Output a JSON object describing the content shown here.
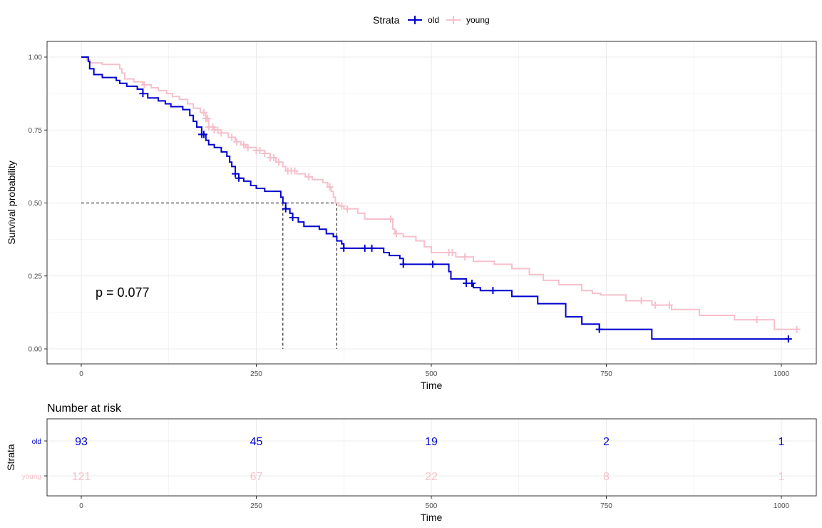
{
  "chart_data": [
    {
      "type": "line",
      "subtype": "kaplan-meier-step",
      "title": "",
      "xlabel": "Time",
      "ylabel": "Survival probability",
      "xlim": [
        -50,
        1050
      ],
      "ylim": [
        -0.05,
        1.05
      ],
      "x_ticks": [
        0,
        250,
        500,
        750,
        1000
      ],
      "y_ticks": [
        "0.00",
        "0.25",
        "0.50",
        "0.75",
        "1.00"
      ],
      "grid": true,
      "legend": {
        "title": "Strata",
        "position": "top",
        "entries": [
          "old",
          "young"
        ]
      },
      "annotations": {
        "p_value": "p = 0.077",
        "median_survival": {
          "old": 288,
          "young": 365,
          "line_y": 0.5
        }
      },
      "series": [
        {
          "name": "old",
          "color": "#0000CD",
          "steps": [
            [
              0,
              1.0
            ],
            [
              8,
              1.0
            ],
            [
              10,
              0.985
            ],
            [
              12,
              0.96
            ],
            [
              18,
              0.94
            ],
            [
              30,
              0.93
            ],
            [
              50,
              0.92
            ],
            [
              55,
              0.91
            ],
            [
              65,
              0.9
            ],
            [
              80,
              0.89
            ],
            [
              88,
              0.875
            ],
            [
              95,
              0.86
            ],
            [
              110,
              0.85
            ],
            [
              120,
              0.84
            ],
            [
              128,
              0.83
            ],
            [
              145,
              0.82
            ],
            [
              155,
              0.8
            ],
            [
              160,
              0.78
            ],
            [
              165,
              0.76
            ],
            [
              172,
              0.735
            ],
            [
              178,
              0.715
            ],
            [
              182,
              0.7
            ],
            [
              190,
              0.69
            ],
            [
              200,
              0.675
            ],
            [
              208,
              0.66
            ],
            [
              212,
              0.64
            ],
            [
              215,
              0.625
            ],
            [
              220,
              0.6
            ],
            [
              225,
              0.585
            ],
            [
              232,
              0.575
            ],
            [
              242,
              0.56
            ],
            [
              250,
              0.55
            ],
            [
              262,
              0.54
            ],
            [
              285,
              0.52
            ],
            [
              288,
              0.5
            ],
            [
              292,
              0.48
            ],
            [
              298,
              0.465
            ],
            [
              302,
              0.45
            ],
            [
              310,
              0.435
            ],
            [
              318,
              0.42
            ],
            [
              340,
              0.41
            ],
            [
              350,
              0.395
            ],
            [
              360,
              0.385
            ],
            [
              365,
              0.37
            ],
            [
              372,
              0.36
            ],
            [
              375,
              0.345
            ],
            [
              430,
              0.345
            ],
            [
              432,
              0.33
            ],
            [
              440,
              0.32
            ],
            [
              455,
              0.31
            ],
            [
              460,
              0.29
            ],
            [
              520,
              0.29
            ],
            [
              525,
              0.265
            ],
            [
              528,
              0.24
            ],
            [
              545,
              0.24
            ],
            [
              550,
              0.225
            ],
            [
              560,
              0.21
            ],
            [
              570,
              0.2
            ],
            [
              610,
              0.2
            ],
            [
              615,
              0.18
            ],
            [
              650,
              0.18
            ],
            [
              652,
              0.155
            ],
            [
              688,
              0.155
            ],
            [
              692,
              0.11
            ],
            [
              712,
              0.11
            ],
            [
              715,
              0.085
            ],
            [
              736,
              0.085
            ],
            [
              740,
              0.067
            ],
            [
              812,
              0.067
            ],
            [
              815,
              0.034
            ],
            [
              1010,
              0.034
            ]
          ],
          "censor_times": [
            88,
            172,
            175,
            220,
            225,
            292,
            302,
            375,
            405,
            415,
            460,
            502,
            550,
            558,
            588,
            740,
            1010
          ]
        },
        {
          "name": "young",
          "color": "#F5C0CB",
          "steps": [
            [
              0,
              1.0
            ],
            [
              8,
              0.99
            ],
            [
              12,
              0.98
            ],
            [
              30,
              0.975
            ],
            [
              55,
              0.96
            ],
            [
              58,
              0.945
            ],
            [
              62,
              0.925
            ],
            [
              75,
              0.915
            ],
            [
              88,
              0.905
            ],
            [
              100,
              0.895
            ],
            [
              110,
              0.885
            ],
            [
              122,
              0.875
            ],
            [
              130,
              0.865
            ],
            [
              140,
              0.855
            ],
            [
              152,
              0.84
            ],
            [
              160,
              0.825
            ],
            [
              170,
              0.81
            ],
            [
              178,
              0.79
            ],
            [
              182,
              0.76
            ],
            [
              190,
              0.75
            ],
            [
              200,
              0.74
            ],
            [
              210,
              0.725
            ],
            [
              220,
              0.71
            ],
            [
              228,
              0.7
            ],
            [
              235,
              0.69
            ],
            [
              250,
              0.68
            ],
            [
              262,
              0.67
            ],
            [
              270,
              0.655
            ],
            [
              278,
              0.64
            ],
            [
              288,
              0.625
            ],
            [
              292,
              0.61
            ],
            [
              308,
              0.6
            ],
            [
              320,
              0.59
            ],
            [
              330,
              0.58
            ],
            [
              345,
              0.57
            ],
            [
              352,
              0.555
            ],
            [
              357,
              0.54
            ],
            [
              360,
              0.52
            ],
            [
              363,
              0.5
            ],
            [
              368,
              0.49
            ],
            [
              375,
              0.48
            ],
            [
              395,
              0.465
            ],
            [
              405,
              0.445
            ],
            [
              440,
              0.445
            ],
            [
              445,
              0.41
            ],
            [
              448,
              0.395
            ],
            [
              460,
              0.385
            ],
            [
              478,
              0.37
            ],
            [
              490,
              0.35
            ],
            [
              500,
              0.33
            ],
            [
              525,
              0.33
            ],
            [
              535,
              0.315
            ],
            [
              560,
              0.3
            ],
            [
              590,
              0.29
            ],
            [
              615,
              0.275
            ],
            [
              640,
              0.255
            ],
            [
              660,
              0.235
            ],
            [
              682,
              0.22
            ],
            [
              712,
              0.22
            ],
            [
              715,
              0.2
            ],
            [
              730,
              0.19
            ],
            [
              742,
              0.185
            ],
            [
              772,
              0.185
            ],
            [
              778,
              0.165
            ],
            [
              810,
              0.165
            ],
            [
              815,
              0.15
            ],
            [
              838,
              0.15
            ],
            [
              843,
              0.135
            ],
            [
              880,
              0.135
            ],
            [
              883,
              0.115
            ],
            [
              930,
              0.115
            ],
            [
              933,
              0.1
            ],
            [
              985,
              0.1
            ],
            [
              990,
              0.067
            ],
            [
              1022,
              0.067
            ]
          ],
          "censor_times": [
            90,
            175,
            178,
            180,
            182,
            188,
            190,
            195,
            200,
            215,
            222,
            232,
            238,
            250,
            255,
            262,
            270,
            275,
            282,
            295,
            300,
            305,
            325,
            355,
            372,
            380,
            442,
            450,
            525,
            530,
            548,
            800,
            820,
            840,
            965,
            1022
          ]
        }
      ]
    },
    {
      "type": "table",
      "title": "Number at risk",
      "xlabel": "Time",
      "ylabel": "Strata",
      "x_ticks": [
        0,
        250,
        500,
        750,
        1000
      ],
      "rows": [
        {
          "name": "old",
          "color": "#0000CD",
          "values": [
            93,
            45,
            19,
            2,
            1
          ]
        },
        {
          "name": "young",
          "color": "#F5C0CB",
          "values": [
            121,
            67,
            22,
            8,
            1
          ]
        }
      ]
    }
  ],
  "legend": {
    "title": "Strata",
    "items": [
      {
        "label": "old"
      },
      {
        "label": "young"
      }
    ]
  },
  "main": {
    "xlabel": "Time",
    "ylabel": "Survival probability",
    "p_value": "p = 0.077",
    "y_ticks": [
      "1.00",
      "0.75",
      "0.50",
      "0.25",
      "0.00"
    ],
    "x_ticks": [
      "0",
      "250",
      "500",
      "750",
      "1000"
    ]
  },
  "risk": {
    "title": "Number at risk",
    "ylabel": "Strata",
    "xlabel": "Time",
    "row_labels": [
      "old",
      "young"
    ],
    "x_ticks": [
      "0",
      "250",
      "500",
      "750",
      "1000"
    ],
    "old": [
      "93",
      "45",
      "19",
      "2",
      "1"
    ],
    "young": [
      "121",
      "67",
      "22",
      "8",
      "1"
    ]
  },
  "colors": {
    "old": "#0000CD",
    "young": "#F5C0CB",
    "grid": "#EBEBEB",
    "axis": "#333333"
  }
}
